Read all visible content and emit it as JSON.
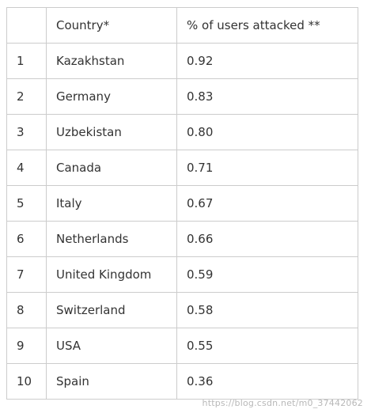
{
  "table": {
    "headers": [
      "",
      "Country*",
      "% of users attacked **"
    ],
    "rows": [
      {
        "rank": "1",
        "country": "Kazakhstan",
        "percent": "0.92"
      },
      {
        "rank": "2",
        "country": "Germany",
        "percent": "0.83"
      },
      {
        "rank": "3",
        "country": "Uzbekistan",
        "percent": "0.80"
      },
      {
        "rank": "4",
        "country": "Canada",
        "percent": "0.71"
      },
      {
        "rank": "5",
        "country": "Italy",
        "percent": "0.67"
      },
      {
        "rank": "6",
        "country": "Netherlands",
        "percent": "0.66"
      },
      {
        "rank": "7",
        "country": "United Kingdom",
        "percent": "0.59"
      },
      {
        "rank": "8",
        "country": "Switzerland",
        "percent": "0.58"
      },
      {
        "rank": "9",
        "country": "USA",
        "percent": "0.55"
      },
      {
        "rank": "10",
        "country": "Spain",
        "percent": "0.36"
      }
    ]
  },
  "watermark": "https://blog.csdn.net/m0_37442062"
}
